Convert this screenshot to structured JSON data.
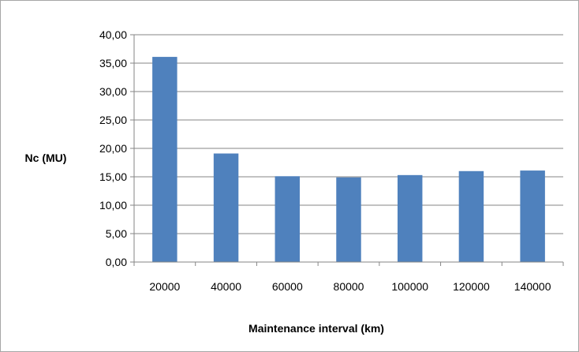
{
  "chart_data": {
    "type": "bar",
    "title": "",
    "xlabel": "Maintenance interval (km)",
    "ylabel": "Nc (MU)",
    "categories": [
      "20000",
      "40000",
      "60000",
      "80000",
      "100000",
      "120000",
      "140000"
    ],
    "values": [
      36.1,
      19.1,
      15.1,
      14.9,
      15.3,
      16.0,
      16.1
    ],
    "ylim": [
      0,
      40
    ],
    "yticks": [
      "0,00",
      "5,00",
      "10,00",
      "15,00",
      "20,00",
      "25,00",
      "30,00",
      "35,00",
      "40,00"
    ],
    "grid": true,
    "legend": "none",
    "bar_color": "#4f81bd"
  }
}
